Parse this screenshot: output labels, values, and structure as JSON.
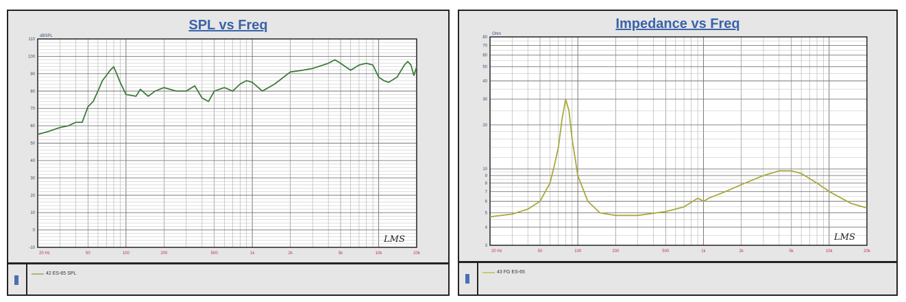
{
  "chart_data": [
    {
      "type": "line",
      "title": "SPL vs Freq",
      "ylabel": "dBSPL",
      "xscale": "log",
      "xlim": [
        20,
        20000
      ],
      "ylim": [
        -10,
        110
      ],
      "xticks": [
        20,
        50,
        100,
        200,
        500,
        1000,
        2000,
        5000,
        10000,
        20000
      ],
      "xtick_labels": [
        "20 Hz",
        "50",
        "100",
        "200",
        "500",
        "1k",
        "2k",
        "5k",
        "10k",
        "20k"
      ],
      "yticks": [
        -10,
        0,
        10,
        20,
        30,
        40,
        50,
        60,
        70,
        80,
        90,
        100,
        110
      ],
      "grid": true,
      "color": "#3d7a3a",
      "logo": "LMS",
      "legend": "42 ES-65 SPL",
      "x": [
        20,
        25,
        30,
        35,
        40,
        45,
        50,
        55,
        60,
        65,
        70,
        75,
        80,
        90,
        100,
        120,
        130,
        150,
        170,
        200,
        250,
        300,
        350,
        400,
        450,
        500,
        600,
        700,
        800,
        900,
        1000,
        1200,
        1500,
        2000,
        2500,
        3000,
        4000,
        4500,
        5000,
        6000,
        7000,
        8000,
        9000,
        10000,
        11000,
        12000,
        14000,
        16000,
        17000,
        18000,
        19000,
        20000
      ],
      "y": [
        55,
        57,
        59,
        60,
        62,
        62,
        71,
        74,
        80,
        86,
        89,
        92,
        94,
        85,
        78,
        77,
        81,
        77,
        80,
        82,
        80,
        80,
        83,
        76,
        74,
        80,
        82,
        80,
        84,
        86,
        85,
        80,
        84,
        91,
        92,
        93,
        96,
        98,
        96,
        92,
        95,
        96,
        95,
        88,
        86,
        85,
        88,
        95,
        97,
        95,
        89,
        94
      ]
    },
    {
      "type": "line",
      "title": "Impedance vs Freq",
      "ylabel": "Ohm",
      "xscale": "log",
      "yscale": "log",
      "xlim": [
        20,
        20000
      ],
      "ylim": [
        3,
        80
      ],
      "xticks": [
        20,
        50,
        100,
        200,
        500,
        1000,
        2000,
        5000,
        10000,
        20000
      ],
      "xtick_labels": [
        "20 Hz",
        "50",
        "100",
        "200",
        "500",
        "1k",
        "2k",
        "5k",
        "10k",
        "20k"
      ],
      "yticks": [
        3,
        4,
        5,
        6,
        7,
        8,
        9,
        10,
        20,
        30,
        40,
        50,
        60,
        70,
        80
      ],
      "grid": true,
      "color": "#a8a83a",
      "logo": "LMS",
      "legend": "43 FG ES-65",
      "x": [
        20,
        30,
        40,
        50,
        60,
        65,
        70,
        75,
        80,
        85,
        90,
        100,
        120,
        150,
        200,
        300,
        500,
        700,
        900,
        1000,
        1100,
        1500,
        2000,
        3000,
        4000,
        5000,
        6000,
        8000,
        10000,
        15000,
        20000
      ],
      "y": [
        4.7,
        4.9,
        5.3,
        6,
        8,
        10.5,
        14,
        22,
        30,
        25,
        16,
        9,
        6,
        5,
        4.8,
        4.8,
        5.1,
        5.5,
        6.3,
        6,
        6.3,
        7,
        7.8,
        9,
        9.7,
        9.7,
        9.3,
        8,
        7,
        5.8,
        5.4
      ]
    }
  ]
}
